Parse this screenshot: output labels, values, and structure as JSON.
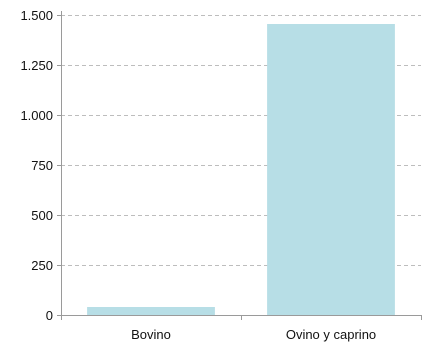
{
  "chart_data": {
    "type": "bar",
    "categories": [
      "Bovino",
      "Ovino y caprino"
    ],
    "values": [
      40,
      1455
    ],
    "ylim": [
      0,
      1500
    ],
    "yticks": [
      0,
      250,
      500,
      750,
      1000,
      1250,
      1500
    ],
    "ytick_labels": [
      "0",
      "250",
      "500",
      "750",
      "1.000",
      "1.250",
      "1.500"
    ],
    "grid": true,
    "legend": "none",
    "colors": {
      "bar": "#b7dee6",
      "grid": "#bdbdbd",
      "axis": "#9a9a9a",
      "text": "#111111"
    }
  }
}
